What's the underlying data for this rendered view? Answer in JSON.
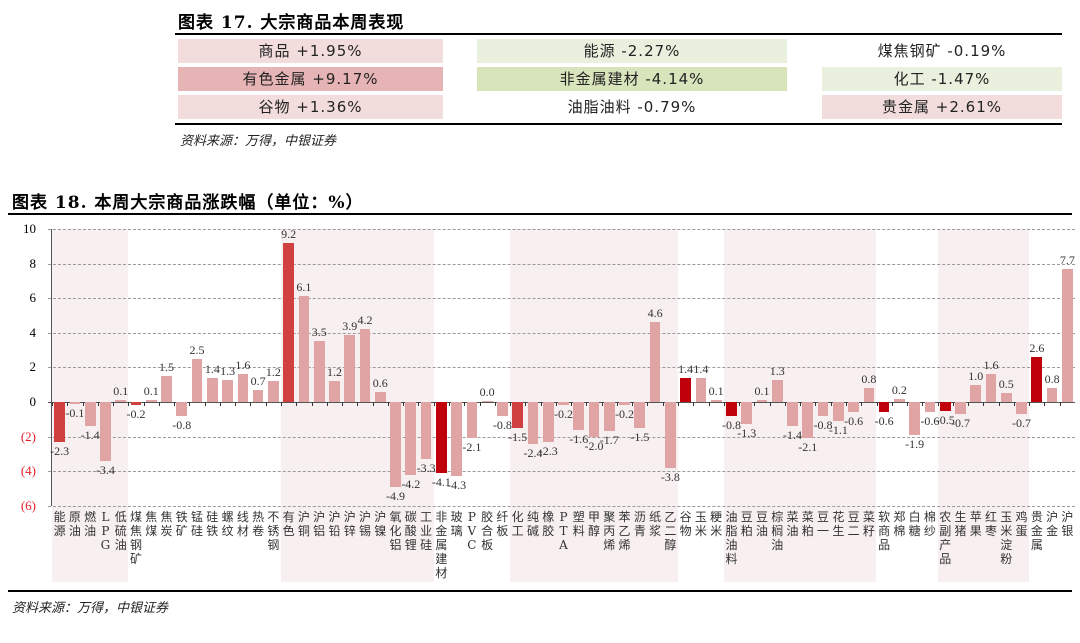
{
  "table17": {
    "title": "图表 17. 大宗商品本周表现",
    "cells": [
      {
        "label": "商品 +1.95%",
        "color": "#f2dcdc",
        "col": 0,
        "row": 0
      },
      {
        "label": "能源 -2.27%",
        "color": "#eaf0de",
        "col": 1,
        "row": 0
      },
      {
        "label": "煤焦钢矿 -0.19%",
        "color": "#ffffff",
        "col": 2,
        "row": 0
      },
      {
        "label": "有色金属 +9.17%",
        "color": "#e6b4b4",
        "col": 0,
        "row": 1
      },
      {
        "label": "非金属建材 -4.14%",
        "color": "#d8e4bc",
        "col": 1,
        "row": 1
      },
      {
        "label": "化工 -1.47%",
        "color": "#eaf0de",
        "col": 2,
        "row": 1
      },
      {
        "label": "谷物 +1.36%",
        "color": "#f2dcdc",
        "col": 0,
        "row": 2
      },
      {
        "label": "油脂油料 -0.79%",
        "color": "#ffffff",
        "col": 1,
        "row": 2
      },
      {
        "label": "贵金属 +2.61%",
        "color": "#f2dcdc",
        "col": 2,
        "row": 2
      }
    ],
    "source": "资料来源：万得，中银证券"
  },
  "chart_title": "图表 18. 本周大宗商品涨跌幅（单位：%）",
  "chart_source": "资料来源：万得，中银证券",
  "colors": {
    "dark": "#c0000a",
    "dark2": "#d04040",
    "light": "#e0a4a4",
    "band": "#f8f0f0",
    "neg_axis": "#e8202a"
  },
  "chart_data": {
    "type": "bar",
    "title": "本周大宗商品涨跌幅（单位：%）",
    "xlabel": "",
    "ylabel": "%",
    "ylim": [
      -6,
      10
    ],
    "yticks": [
      "10",
      "8",
      "6",
      "4",
      "2",
      "0",
      "(2)",
      "(4)",
      "(6)"
    ],
    "grid": true,
    "categories": [
      "能源",
      "原油",
      "燃油",
      "LPG",
      "低硫油",
      "煤焦钢矿",
      "焦煤",
      "焦炭",
      "铁矿",
      "锰硅",
      "硅铁",
      "螺纹",
      "线材",
      "热卷",
      "不锈钢",
      "有色",
      "沪铜",
      "沪铝",
      "沪铅",
      "沪锌",
      "沪锡",
      "沪镍",
      "氧化铝",
      "碳酸锂",
      "工业硅",
      "非金属建材",
      "玻璃",
      "PVC",
      "胶合板",
      "纤板",
      "化工",
      "纯碱",
      "橡胶",
      "PTA",
      "塑料",
      "甲醇",
      "聚丙烯",
      "苯乙烯",
      "沥青",
      "纸浆",
      "乙二醇",
      "谷物",
      "玉米",
      "粳米",
      "油脂油料",
      "豆粕",
      "豆油",
      "棕榈油",
      "菜油",
      "菜粕",
      "豆一",
      "花生",
      "豆二",
      "菜籽",
      "软商品",
      "郑棉",
      "白糖",
      "棉纱",
      "农副产品",
      "生猪",
      "苹果",
      "红枣",
      "玉米淀粉",
      "鸡蛋",
      "贵金属",
      "沪金",
      "沪银"
    ],
    "values": [
      -2.3,
      -0.1,
      -1.4,
      -3.4,
      0.1,
      -0.2,
      0.1,
      1.5,
      -0.8,
      2.5,
      1.4,
      1.3,
      1.6,
      0.7,
      1.2,
      9.2,
      6.1,
      3.5,
      1.2,
      3.9,
      4.2,
      0.6,
      -4.9,
      -4.2,
      -3.3,
      -4.1,
      -4.3,
      -2.1,
      0.0,
      -0.8,
      -1.5,
      -2.4,
      -2.3,
      -0.2,
      -1.6,
      -2.0,
      -1.7,
      -0.2,
      -1.5,
      4.6,
      -3.8,
      1.4,
      1.4,
      0.1,
      -0.8,
      -1.3,
      0.1,
      1.3,
      -1.4,
      -2.1,
      -0.8,
      -1.1,
      -0.6,
      0.8,
      -0.6,
      0.2,
      -1.9,
      -0.6,
      -0.5,
      -0.7,
      1.0,
      1.6,
      0.5,
      -0.7,
      2.6,
      0.8,
      7.7
    ],
    "sector_heads": [
      0,
      5,
      15,
      25,
      30,
      41,
      44,
      54,
      58,
      64
    ],
    "sector_shaded_ranges": [
      [
        0,
        4
      ],
      [
        15,
        24
      ],
      [
        30,
        40
      ],
      [
        44,
        53
      ],
      [
        58,
        63
      ]
    ],
    "heads_dark": [
      0,
      5,
      25,
      41
    ],
    "heads_mid": [
      15,
      30,
      44,
      54,
      58,
      64
    ]
  }
}
